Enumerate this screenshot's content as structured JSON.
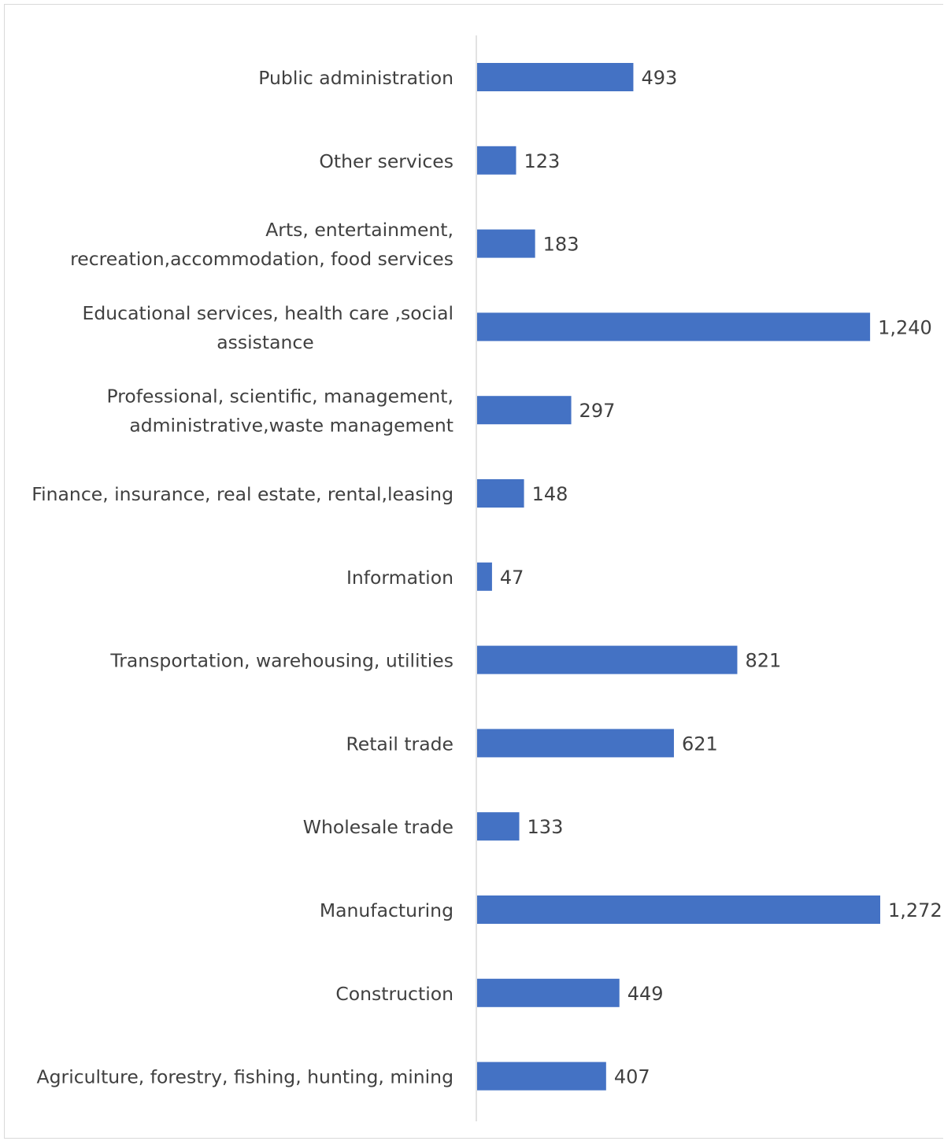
{
  "chart_data": {
    "type": "bar",
    "orientation": "horizontal",
    "title": "",
    "xlabel": "",
    "ylabel": "",
    "xlim": [
      0,
      1272
    ],
    "grid": false,
    "legend": "none",
    "bar_color": "#4472C4",
    "axis_color": "#d9d9d9",
    "label_color": "#404040",
    "categories": [
      [
        "Public administration"
      ],
      [
        "Other services"
      ],
      [
        "Arts, entertainment,",
        "recreation,accommodation, food services"
      ],
      [
        "Educational services, health care ,social",
        "assistance"
      ],
      [
        "Professional, scientific, management,",
        "administrative,waste management"
      ],
      [
        "Finance, insurance, real estate, rental,leasing"
      ],
      [
        "Information"
      ],
      [
        "Transportation, warehousing, utilities"
      ],
      [
        "Retail trade"
      ],
      [
        "Wholesale trade"
      ],
      [
        "Manufacturing"
      ],
      [
        "Construction"
      ],
      [
        "Agriculture, forestry, fishing, hunting, mining"
      ]
    ],
    "values": [
      493,
      123,
      183,
      1240,
      297,
      148,
      47,
      821,
      621,
      133,
      1272,
      449,
      407
    ],
    "value_labels": [
      "493",
      "123",
      "183",
      "1,240",
      "297",
      "148",
      "47",
      "821",
      "621",
      "133",
      "1,272",
      "449",
      "407"
    ]
  }
}
